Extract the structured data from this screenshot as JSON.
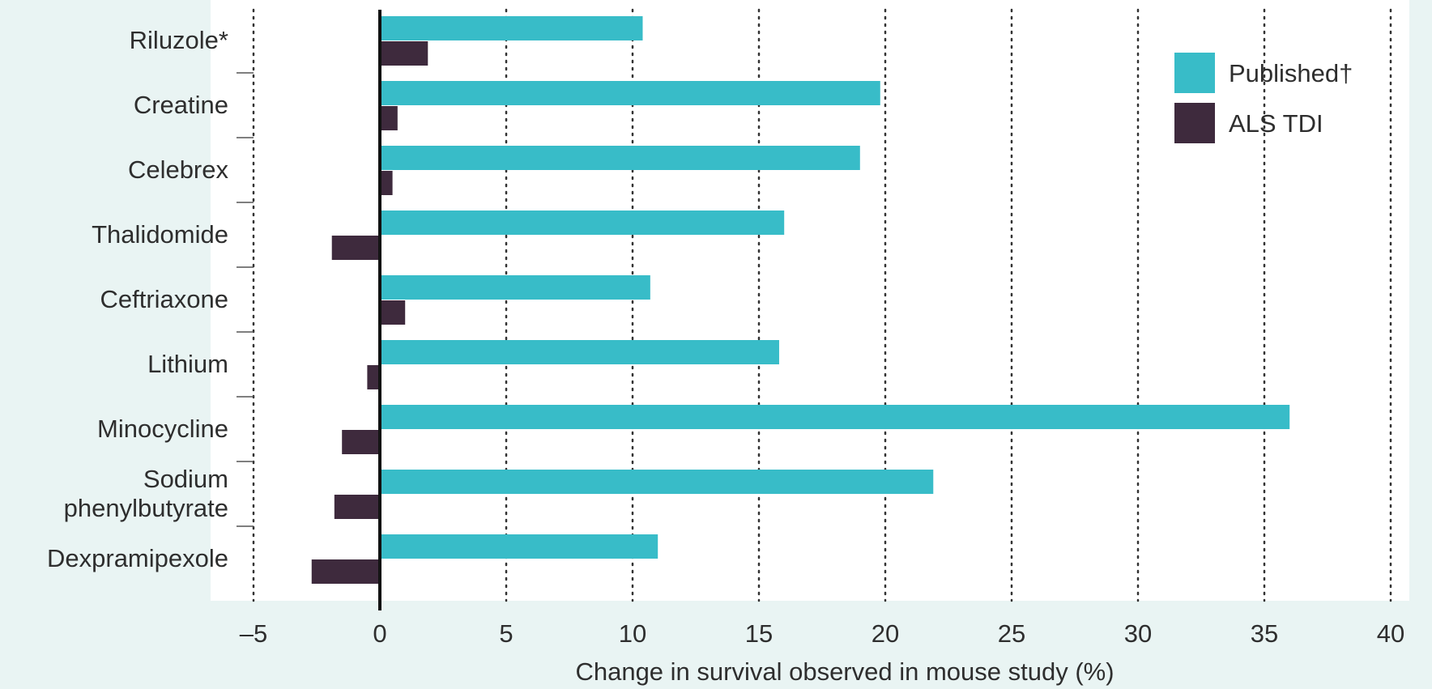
{
  "chart_data": {
    "type": "bar",
    "orientation": "horizontal",
    "categories": [
      [
        "Riluzole*"
      ],
      [
        "Creatine"
      ],
      [
        "Celebrex"
      ],
      [
        "Thalidomide"
      ],
      [
        "Ceftriaxone"
      ],
      [
        "Lithium"
      ],
      [
        "Minocycline"
      ],
      [
        "Sodium",
        "phenylbutyrate"
      ],
      [
        "Dexpramipexole"
      ]
    ],
    "series": [
      {
        "name": "Published†",
        "color": "#38bcc8",
        "values": [
          10.4,
          19.8,
          19.0,
          16.0,
          10.7,
          15.8,
          36.0,
          21.9,
          11.0
        ]
      },
      {
        "name": "ALS TDI",
        "color": "#3e2a3d",
        "values": [
          1.9,
          0.7,
          0.5,
          -1.9,
          1.0,
          -0.5,
          -1.5,
          -1.8,
          -2.7
        ]
      }
    ],
    "xlabel": "Change in survival observed in mouse study (%)",
    "xlim": [
      -5,
      40
    ],
    "xticks": [
      -5,
      0,
      5,
      10,
      15,
      20,
      25,
      30,
      35,
      40
    ],
    "xtick_labels": [
      "–5",
      "0",
      "5",
      "10",
      "15",
      "20",
      "25",
      "30",
      "35",
      "40"
    ],
    "grid": "vertical-dotted",
    "legend": "top-right",
    "colors": {
      "background": "#e9f4f3",
      "plot_background": "#ffffff",
      "zero_line": "#111111"
    }
  }
}
